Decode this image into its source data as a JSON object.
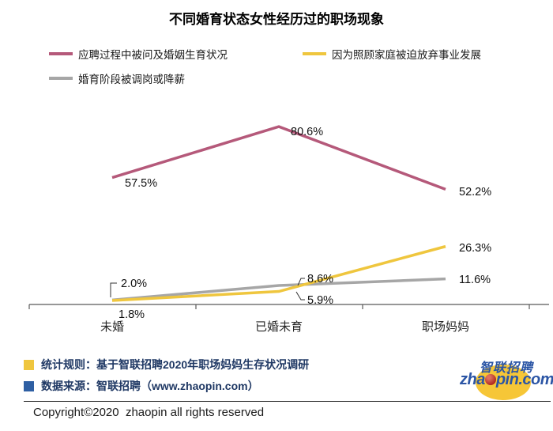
{
  "title": "不同婚育状态女性经历过的职场现象",
  "legend": [
    {
      "label": "应聘过程中被问及婚姻生育状况",
      "color": "#B5597A"
    },
    {
      "label": "因为照顾家庭被迫放弃事业发展",
      "color": "#EFC63E"
    },
    {
      "label": "婚育阶段被调岗或降薪",
      "color": "#A6A6A6"
    }
  ],
  "chart_data": {
    "type": "line",
    "title": "不同婚育状态女性经历过的职场现象",
    "categories": [
      "未婚",
      "已婚未育",
      "职场妈妈"
    ],
    "series": [
      {
        "name": "应聘过程中被问及婚姻生育状况",
        "color": "#B5597A",
        "values": [
          57.5,
          80.6,
          52.2
        ]
      },
      {
        "name": "因为照顾家庭被迫放弃事业发展",
        "color": "#EFC63E",
        "values": [
          1.8,
          5.9,
          26.3
        ]
      },
      {
        "name": "婚育阶段被调岗或降薪",
        "color": "#A6A6A6",
        "values": [
          2.0,
          8.6,
          11.6
        ]
      }
    ],
    "value_suffix": "%",
    "ylim": [
      0,
      90
    ],
    "grid": false,
    "legend_position": "top-left",
    "data_labels": true
  },
  "footnotes": [
    {
      "swatch_color": "#EFC63E",
      "text": "统计规则：基于智联招聘2020年职场妈妈生存状况调研"
    },
    {
      "swatch_color": "#2E5FA3",
      "text": "数据来源：智联招聘（www.zhaopin.com）"
    }
  ],
  "logo": {
    "cn_text": "智联招聘",
    "domain_prefix": "zha",
    "domain_suffix": "pin.com"
  },
  "copyright": "Copyright©2020  zhaopin all rights reserved"
}
